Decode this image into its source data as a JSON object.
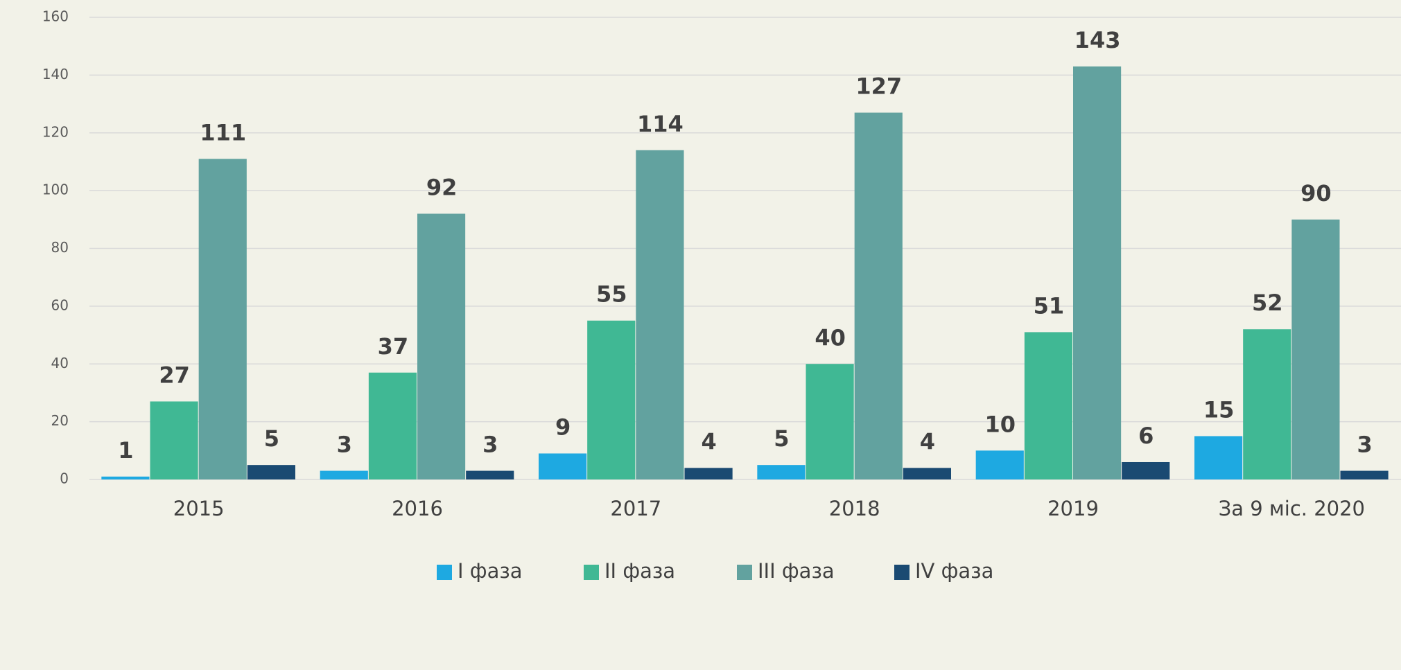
{
  "chart_data": {
    "type": "bar",
    "categories": [
      "2015",
      "2016",
      "2017",
      "2018",
      "2019",
      "За 9 міс. 2020"
    ],
    "series": [
      {
        "name": "I фаза",
        "color": "#1ea9e1",
        "values": [
          1,
          3,
          9,
          5,
          10,
          15
        ]
      },
      {
        "name": "II фаза",
        "color": "#40b894",
        "values": [
          27,
          37,
          55,
          40,
          51,
          52
        ]
      },
      {
        "name": "III фаза",
        "color": "#62a29f",
        "values": [
          111,
          92,
          114,
          127,
          143,
          90
        ]
      },
      {
        "name": "IV фаза",
        "color": "#1a4a72",
        "values": [
          5,
          3,
          4,
          4,
          6,
          3
        ]
      }
    ],
    "ylim": [
      0,
      160
    ],
    "yticks": [
      0,
      20,
      40,
      60,
      80,
      100,
      120,
      140,
      160
    ],
    "grid": true,
    "legend": "bottom"
  }
}
